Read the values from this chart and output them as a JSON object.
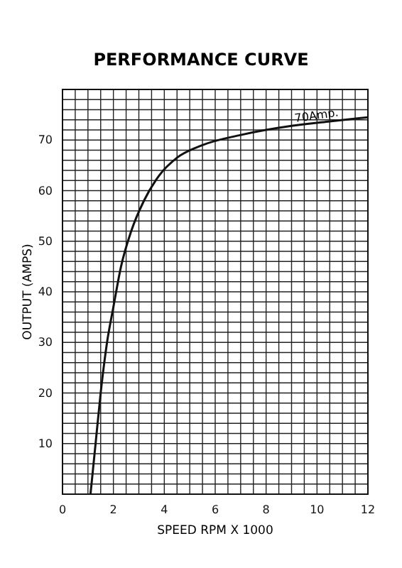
{
  "chart_data": {
    "type": "line",
    "title": "PERFORMANCE CURVE",
    "xlabel": "SPEED RPM X 1000",
    "ylabel": "OUTPUT (AMPS)",
    "x": [
      1.1,
      1.3,
      1.5,
      1.75,
      2.0,
      2.3,
      2.7,
      3.2,
      3.8,
      4.5,
      5.5,
      7,
      9,
      10.5,
      12
    ],
    "series": [
      {
        "color": "#111111",
        "values": [
          0,
          10,
          20,
          30,
          37,
          45,
          52,
          58,
          63,
          66.5,
          69,
          71,
          72.8,
          73.7,
          74.5
        ]
      }
    ],
    "xlim": [
      0,
      12
    ],
    "ylim": [
      0,
      80
    ],
    "xticks": [
      0,
      {
        "value": 0.5,
        "label": null
      },
      {
        "value": 1,
        "label": null
      },
      {
        "value": 1.5,
        "label": null
      },
      2,
      {
        "value": 2.5,
        "label": null
      },
      {
        "value": 3,
        "label": null
      },
      {
        "value": 3.5,
        "label": null
      },
      4,
      {
        "value": 4.5,
        "label": null
      },
      {
        "value": 5,
        "label": null
      },
      {
        "value": 5.5,
        "label": null
      },
      6,
      {
        "value": 6.5,
        "label": null
      },
      {
        "value": 7,
        "label": null
      },
      {
        "value": 7.5,
        "label": null
      },
      8,
      {
        "value": 8.5,
        "label": null
      },
      {
        "value": 9,
        "label": null
      },
      {
        "value": 9.5,
        "label": null
      },
      10,
      {
        "value": 10.5,
        "label": null
      },
      {
        "value": 11,
        "label": null
      },
      {
        "value": 11.5,
        "label": null
      },
      12
    ],
    "yticks": [
      {
        "value": 0,
        "label": null
      },
      {
        "value": 2,
        "label": null
      },
      {
        "value": 4,
        "label": null
      },
      {
        "value": 6,
        "label": null
      },
      {
        "value": 8,
        "label": null
      },
      10,
      {
        "value": 12,
        "label": null
      },
      {
        "value": 14,
        "label": null
      },
      {
        "value": 16,
        "label": null
      },
      {
        "value": 18,
        "label": null
      },
      20,
      {
        "value": 22,
        "label": null
      },
      {
        "value": 24,
        "label": null
      },
      {
        "value": 26,
        "label": null
      },
      {
        "value": 28,
        "label": null
      },
      30,
      {
        "value": 32,
        "label": null
      },
      {
        "value": 34,
        "label": null
      },
      {
        "value": 36,
        "label": null
      },
      {
        "value": 38,
        "label": null
      },
      40,
      {
        "value": 42,
        "label": null
      },
      {
        "value": 44,
        "label": null
      },
      {
        "value": 46,
        "label": null
      },
      {
        "value": 48,
        "label": null
      },
      50,
      {
        "value": 52,
        "label": null
      },
      {
        "value": 54,
        "label": null
      },
      {
        "value": 56,
        "label": null
      },
      {
        "value": 58,
        "label": null
      },
      60,
      {
        "value": 62,
        "label": null
      },
      {
        "value": 64,
        "label": null
      },
      {
        "value": 66,
        "label": null
      },
      {
        "value": 68,
        "label": null
      },
      70,
      {
        "value": 72,
        "label": null
      },
      {
        "value": 74,
        "label": null
      },
      {
        "value": 76,
        "label": null
      },
      {
        "value": 78,
        "label": null
      },
      {
        "value": 80,
        "label": null
      }
    ],
    "grid": true,
    "marker": "none",
    "line_style": "solid",
    "annotations": [
      {
        "text": "70Amp.",
        "x": 10,
        "y": 73.3
      }
    ]
  }
}
